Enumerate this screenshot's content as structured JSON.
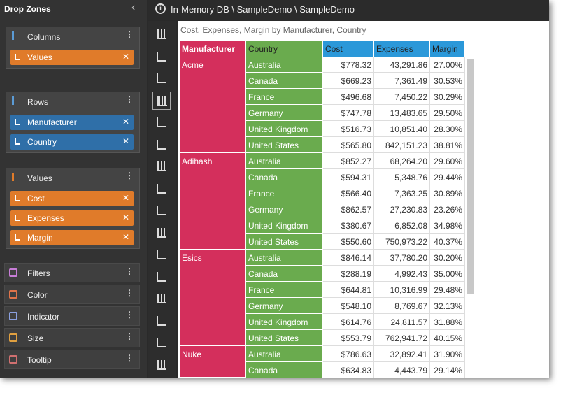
{
  "panel": {
    "title": "Drop Zones",
    "zones": [
      {
        "title": "Columns",
        "items": [
          "Values"
        ]
      },
      {
        "title": "Rows",
        "items": [
          "Manufacturer",
          "Country"
        ]
      },
      {
        "title": "Values",
        "items": [
          "Cost",
          "Expenses",
          "Margin"
        ]
      }
    ],
    "other_zones": [
      "Filters",
      "Color",
      "Indicator",
      "Size",
      "Tooltip"
    ]
  },
  "breadcrumb": "In-Memory DB \\ SampleDemo \\ SampleDemo",
  "report_title": "Cost, Expenses, Margin by Manufacturer, Country",
  "table": {
    "headers": [
      "Manufacturer",
      "Country",
      "Cost",
      "Expenses",
      "Margin"
    ],
    "groups": [
      {
        "manufacturer": "Acme",
        "rows": [
          [
            "Australia",
            "$778.32",
            "43,291.86",
            "27.00%"
          ],
          [
            "Canada",
            "$669.23",
            "7,361.49",
            "30.53%"
          ],
          [
            "France",
            "$496.68",
            "7,450.22",
            "30.29%"
          ],
          [
            "Germany",
            "$747.78",
            "13,483.65",
            "29.50%"
          ],
          [
            "United Kingdom",
            "$516.73",
            "10,851.40",
            "28.30%"
          ],
          [
            "United States",
            "$565.80",
            "842,151.23",
            "38.81%"
          ]
        ]
      },
      {
        "manufacturer": "Adihash",
        "rows": [
          [
            "Australia",
            "$852.27",
            "68,264.20",
            "29.60%"
          ],
          [
            "Canada",
            "$594.31",
            "5,348.76",
            "29.44%"
          ],
          [
            "France",
            "$566.40",
            "7,363.25",
            "30.89%"
          ],
          [
            "Germany",
            "$862.57",
            "27,230.83",
            "23.26%"
          ],
          [
            "United Kingdom",
            "$380.67",
            "6,852.08",
            "34.98%"
          ],
          [
            "United States",
            "$550.60",
            "750,973.22",
            "40.37%"
          ]
        ]
      },
      {
        "manufacturer": "Esics",
        "rows": [
          [
            "Australia",
            "$846.14",
            "37,780.20",
            "30.20%"
          ],
          [
            "Canada",
            "$288.19",
            "4,992.43",
            "35.00%"
          ],
          [
            "France",
            "$644.81",
            "10,316.99",
            "29.48%"
          ],
          [
            "Germany",
            "$548.10",
            "8,769.67",
            "32.13%"
          ],
          [
            "United Kingdom",
            "$614.76",
            "24,811.57",
            "31.88%"
          ],
          [
            "United States",
            "$553.79",
            "762,941.72",
            "40.15%"
          ]
        ]
      },
      {
        "manufacturer": "Nuke",
        "rows": [
          [
            "Australia",
            "$786.63",
            "32,892.41",
            "31.90%"
          ],
          [
            "Canada",
            "$634.83",
            "4,443.79",
            "29.14%"
          ]
        ]
      }
    ]
  }
}
